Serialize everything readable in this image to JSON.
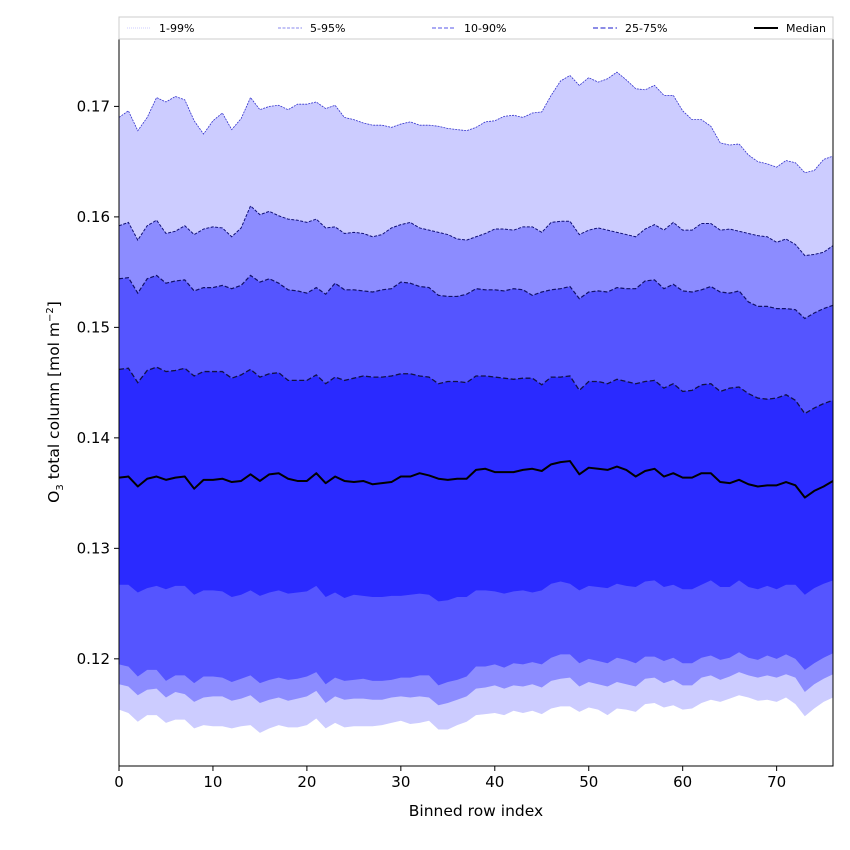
{
  "chart_data": {
    "type": "area",
    "title": "",
    "xlabel": "Binned row index",
    "ylabel_main": "O",
    "ylabel_sub": "3",
    "ylabel_rest": " total column [mol m",
    "ylabel_sup": "−2",
    "ylabel_end": "]",
    "xlim": [
      0,
      76
    ],
    "ylim": [
      0.1103,
      0.1761
    ],
    "x_ticks": [
      0,
      10,
      20,
      30,
      40,
      50,
      60,
      70
    ],
    "x_tick_labels": [
      "0",
      "10",
      "20",
      "30",
      "40",
      "50",
      "60",
      "70"
    ],
    "y_ticks": [
      0.12,
      0.13,
      0.14,
      0.15,
      0.16,
      0.17
    ],
    "y_tick_labels": [
      "0.12",
      "0.13",
      "0.14",
      "0.15",
      "0.16",
      "0.17"
    ],
    "grid": false,
    "legend_placement": "top",
    "legend": [
      {
        "label": "1-99%",
        "color": "#ccccff",
        "style": "dotted"
      },
      {
        "label": "5-95%",
        "color": "#8888ee",
        "style": "dashed"
      },
      {
        "label": "10-90%",
        "color": "#7777ee",
        "style": "dashed"
      },
      {
        "label": "25-75%",
        "color": "#6666dd",
        "style": "dashed"
      },
      {
        "label": "Median",
        "color": "#000000",
        "style": "solid"
      }
    ],
    "band_colors": [
      "#ccccff",
      "#8c8cff",
      "#5555ff",
      "#2a2aff"
    ],
    "band_edge_colors": [
      "#3333cc",
      "#111177",
      "#111166",
      "#111144"
    ],
    "x": [
      0,
      1,
      2,
      3,
      4,
      5,
      6,
      7,
      8,
      9,
      10,
      11,
      12,
      13,
      14,
      15,
      16,
      17,
      18,
      19,
      20,
      21,
      22,
      23,
      24,
      25,
      26,
      27,
      28,
      29,
      30,
      31,
      32,
      33,
      34,
      35,
      36,
      37,
      38,
      39,
      40,
      41,
      42,
      43,
      44,
      45,
      46,
      47,
      48,
      49,
      50,
      51,
      52,
      53,
      54,
      55,
      56,
      57,
      58,
      59,
      60,
      61,
      62,
      63,
      64,
      65,
      66,
      67,
      68,
      69,
      70,
      71,
      72,
      73,
      74,
      75,
      76
    ],
    "series": [
      {
        "name": "p99",
        "values": [
          0.169,
          0.1696,
          0.1678,
          0.169,
          0.1708,
          0.1704,
          0.1709,
          0.1706,
          0.1687,
          0.1675,
          0.1687,
          0.1694,
          0.1679,
          0.1689,
          0.1708,
          0.1697,
          0.17,
          0.1701,
          0.1697,
          0.1702,
          0.1702,
          0.1704,
          0.1698,
          0.1701,
          0.169,
          0.1688,
          0.1685,
          0.1683,
          0.1683,
          0.1681,
          0.1684,
          0.1686,
          0.1683,
          0.1683,
          0.1682,
          0.168,
          0.1679,
          0.1678,
          0.1681,
          0.1686,
          0.1687,
          0.1691,
          0.1692,
          0.169,
          0.1694,
          0.1695,
          0.171,
          0.1723,
          0.1728,
          0.1719,
          0.1726,
          0.1722,
          0.1725,
          0.1731,
          0.1724,
          0.1716,
          0.1715,
          0.1719,
          0.171,
          0.171,
          0.1696,
          0.1688,
          0.1688,
          0.1682,
          0.1667,
          0.1665,
          0.1666,
          0.1656,
          0.165,
          0.1648,
          0.1645,
          0.1651,
          0.1649,
          0.164,
          0.1642,
          0.1652,
          0.1655
        ]
      },
      {
        "name": "p95",
        "values": [
          0.1592,
          0.1595,
          0.1579,
          0.1592,
          0.1597,
          0.1585,
          0.1587,
          0.1592,
          0.1584,
          0.1589,
          0.1591,
          0.159,
          0.1582,
          0.159,
          0.161,
          0.1602,
          0.1605,
          0.1601,
          0.1598,
          0.1597,
          0.1595,
          0.1598,
          0.159,
          0.1591,
          0.1585,
          0.1586,
          0.1585,
          0.1582,
          0.1584,
          0.159,
          0.1593,
          0.1595,
          0.159,
          0.1588,
          0.1586,
          0.1584,
          0.158,
          0.1579,
          0.1582,
          0.1585,
          0.1589,
          0.1589,
          0.1588,
          0.1591,
          0.1591,
          0.1586,
          0.1595,
          0.1596,
          0.1596,
          0.1584,
          0.1588,
          0.159,
          0.1588,
          0.1586,
          0.1584,
          0.1582,
          0.1589,
          0.1593,
          0.1588,
          0.1595,
          0.1588,
          0.1588,
          0.1594,
          0.1594,
          0.1588,
          0.1589,
          0.1587,
          0.1585,
          0.1583,
          0.1582,
          0.1577,
          0.158,
          0.1575,
          0.1565,
          0.1566,
          0.1568,
          0.1574
        ]
      },
      {
        "name": "p90",
        "values": [
          0.1544,
          0.1545,
          0.1531,
          0.1544,
          0.1547,
          0.154,
          0.1542,
          0.1543,
          0.1533,
          0.1536,
          0.1536,
          0.1538,
          0.1535,
          0.1538,
          0.1547,
          0.1541,
          0.1544,
          0.154,
          0.1534,
          0.1533,
          0.1531,
          0.1536,
          0.153,
          0.154,
          0.1534,
          0.1534,
          0.1533,
          0.1532,
          0.1534,
          0.1535,
          0.1541,
          0.154,
          0.1537,
          0.1536,
          0.1529,
          0.1528,
          0.1528,
          0.153,
          0.1535,
          0.1534,
          0.1534,
          0.1533,
          0.1535,
          0.1534,
          0.1529,
          0.1532,
          0.1534,
          0.1535,
          0.1537,
          0.1526,
          0.1532,
          0.1533,
          0.1532,
          0.1536,
          0.1535,
          0.1535,
          0.1542,
          0.1543,
          0.1535,
          0.1539,
          0.1533,
          0.1532,
          0.1534,
          0.1537,
          0.1532,
          0.1531,
          0.1533,
          0.1523,
          0.1519,
          0.1519,
          0.1517,
          0.1517,
          0.1516,
          0.1508,
          0.1513,
          0.1517,
          0.152
        ]
      },
      {
        "name": "p75",
        "values": [
          0.1462,
          0.1463,
          0.145,
          0.1461,
          0.1464,
          0.146,
          0.1461,
          0.1463,
          0.1456,
          0.146,
          0.146,
          0.146,
          0.1454,
          0.1457,
          0.1462,
          0.1455,
          0.1458,
          0.1459,
          0.1452,
          0.1452,
          0.1452,
          0.1457,
          0.1449,
          0.1455,
          0.1452,
          0.1454,
          0.1456,
          0.1455,
          0.1455,
          0.1456,
          0.1458,
          0.1458,
          0.1456,
          0.1455,
          0.1449,
          0.1451,
          0.1451,
          0.145,
          0.1456,
          0.1456,
          0.1455,
          0.1454,
          0.1453,
          0.1454,
          0.1454,
          0.1448,
          0.1455,
          0.1455,
          0.1456,
          0.1443,
          0.1451,
          0.1451,
          0.1449,
          0.1453,
          0.1451,
          0.1449,
          0.1451,
          0.1452,
          0.1445,
          0.1449,
          0.1442,
          0.1443,
          0.1448,
          0.1449,
          0.1442,
          0.1445,
          0.1446,
          0.144,
          0.1436,
          0.1435,
          0.1436,
          0.1439,
          0.1434,
          0.1422,
          0.1427,
          0.1431,
          0.1434
        ]
      },
      {
        "name": "median",
        "values": [
          0.1364,
          0.1365,
          0.1356,
          0.1363,
          0.1365,
          0.1362,
          0.1364,
          0.1365,
          0.1354,
          0.1362,
          0.1362,
          0.1363,
          0.136,
          0.1361,
          0.1367,
          0.1361,
          0.1367,
          0.1368,
          0.1363,
          0.1361,
          0.1361,
          0.1368,
          0.1359,
          0.1365,
          0.1361,
          0.136,
          0.1361,
          0.1358,
          0.1359,
          0.136,
          0.1365,
          0.1365,
          0.1368,
          0.1366,
          0.1363,
          0.1362,
          0.1363,
          0.1363,
          0.1371,
          0.1372,
          0.1369,
          0.1369,
          0.1369,
          0.1371,
          0.1372,
          0.137,
          0.1376,
          0.1378,
          0.1379,
          0.1367,
          0.1373,
          0.1372,
          0.1371,
          0.1374,
          0.1371,
          0.1365,
          0.137,
          0.1372,
          0.1365,
          0.1368,
          0.1364,
          0.1364,
          0.1368,
          0.1368,
          0.136,
          0.1359,
          0.1362,
          0.1358,
          0.1356,
          0.1357,
          0.1357,
          0.136,
          0.1357,
          0.1346,
          0.1352,
          0.1356,
          0.1361
        ]
      },
      {
        "name": "p25",
        "values": [
          0.1267,
          0.1267,
          0.126,
          0.1264,
          0.1266,
          0.1263,
          0.1266,
          0.1266,
          0.1258,
          0.1262,
          0.1262,
          0.1261,
          0.1256,
          0.1258,
          0.1262,
          0.1257,
          0.126,
          0.1262,
          0.1259,
          0.126,
          0.1261,
          0.1266,
          0.1256,
          0.126,
          0.1255,
          0.1258,
          0.1257,
          0.1256,
          0.1256,
          0.1257,
          0.1257,
          0.1258,
          0.1259,
          0.1258,
          0.1252,
          0.1253,
          0.1256,
          0.1256,
          0.1262,
          0.1262,
          0.1261,
          0.1259,
          0.1261,
          0.1262,
          0.126,
          0.1262,
          0.1268,
          0.127,
          0.1268,
          0.1262,
          0.1266,
          0.1265,
          0.1264,
          0.1268,
          0.1266,
          0.1265,
          0.127,
          0.1271,
          0.1265,
          0.1267,
          0.1263,
          0.1263,
          0.1267,
          0.1271,
          0.1265,
          0.1265,
          0.1271,
          0.1265,
          0.1263,
          0.1266,
          0.1263,
          0.1267,
          0.1267,
          0.1258,
          0.1264,
          0.1268,
          0.1271
        ]
      },
      {
        "name": "p10",
        "values": [
          0.1195,
          0.1193,
          0.1184,
          0.119,
          0.119,
          0.118,
          0.1185,
          0.1185,
          0.1178,
          0.1184,
          0.1184,
          0.1183,
          0.1179,
          0.1182,
          0.1185,
          0.1178,
          0.1181,
          0.1183,
          0.1181,
          0.1182,
          0.1184,
          0.1188,
          0.1177,
          0.1183,
          0.118,
          0.1181,
          0.1182,
          0.118,
          0.118,
          0.1181,
          0.1183,
          0.1183,
          0.1185,
          0.1185,
          0.1176,
          0.1179,
          0.1181,
          0.1184,
          0.1193,
          0.1193,
          0.1195,
          0.1192,
          0.1196,
          0.1195,
          0.1197,
          0.1195,
          0.1201,
          0.1204,
          0.1204,
          0.1196,
          0.12,
          0.1198,
          0.1196,
          0.1201,
          0.1199,
          0.1196,
          0.1202,
          0.1202,
          0.1198,
          0.1201,
          0.1196,
          0.1196,
          0.1201,
          0.1203,
          0.1199,
          0.1201,
          0.1206,
          0.1201,
          0.1199,
          0.1203,
          0.12,
          0.1204,
          0.12,
          0.119,
          0.1196,
          0.1201,
          0.1205
        ]
      },
      {
        "name": "p5",
        "values": [
          0.1177,
          0.1175,
          0.1167,
          0.1172,
          0.1173,
          0.1165,
          0.117,
          0.1168,
          0.1161,
          0.1165,
          0.1166,
          0.1166,
          0.1162,
          0.1164,
          0.1167,
          0.116,
          0.1163,
          0.1165,
          0.1162,
          0.1164,
          0.1166,
          0.1171,
          0.116,
          0.1166,
          0.1163,
          0.1164,
          0.1164,
          0.1163,
          0.1163,
          0.1165,
          0.1166,
          0.1165,
          0.1166,
          0.1165,
          0.1158,
          0.116,
          0.1163,
          0.1166,
          0.1173,
          0.1174,
          0.1176,
          0.1173,
          0.1176,
          0.1175,
          0.1177,
          0.1174,
          0.118,
          0.1182,
          0.1183,
          0.1175,
          0.1179,
          0.1177,
          0.1175,
          0.1179,
          0.1177,
          0.1175,
          0.1182,
          0.1183,
          0.1178,
          0.1181,
          0.1176,
          0.1176,
          0.1183,
          0.1185,
          0.1181,
          0.1184,
          0.1188,
          0.1185,
          0.1183,
          0.1185,
          0.1183,
          0.1186,
          0.1183,
          0.117,
          0.1177,
          0.1182,
          0.1186
        ]
      },
      {
        "name": "p1",
        "values": [
          0.1154,
          0.1151,
          0.1143,
          0.1149,
          0.1149,
          0.1142,
          0.1145,
          0.1145,
          0.1137,
          0.114,
          0.1139,
          0.1139,
          0.1137,
          0.1139,
          0.114,
          0.1133,
          0.1137,
          0.114,
          0.1138,
          0.1138,
          0.114,
          0.1146,
          0.1137,
          0.1142,
          0.1138,
          0.1139,
          0.1139,
          0.1139,
          0.114,
          0.1142,
          0.1144,
          0.1141,
          0.1142,
          0.1144,
          0.1136,
          0.1136,
          0.114,
          0.1143,
          0.1149,
          0.115,
          0.1151,
          0.1149,
          0.1153,
          0.1151,
          0.1153,
          0.115,
          0.1155,
          0.1157,
          0.1157,
          0.1152,
          0.1156,
          0.1154,
          0.1149,
          0.1155,
          0.1154,
          0.1152,
          0.1159,
          0.116,
          0.1156,
          0.1158,
          0.1154,
          0.1155,
          0.116,
          0.1163,
          0.1161,
          0.1164,
          0.1167,
          0.1165,
          0.1162,
          0.1163,
          0.1161,
          0.1165,
          0.1159,
          0.1148,
          0.1155,
          0.1161,
          0.1165
        ]
      }
    ]
  }
}
